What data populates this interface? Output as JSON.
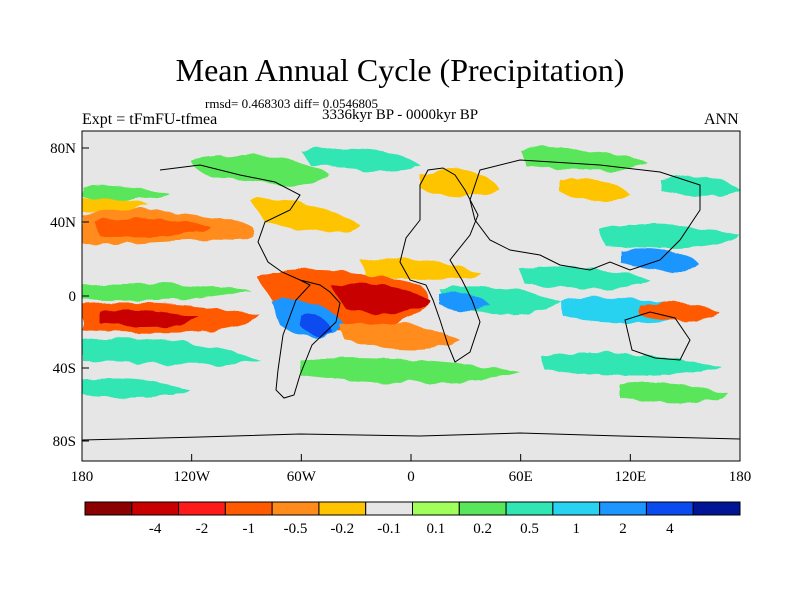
{
  "title": "Mean Annual Cycle (Precipitation)",
  "stats": "rmsd= 0.468303 diff= 0.0546805",
  "period": "3336kyr BP - 0000kyr BP",
  "experiment": "Expt = tFmFU-tfmea",
  "season": "ANN",
  "lat_axis": [
    "80N",
    "40N",
    "0",
    "40S",
    "80S"
  ],
  "lon_axis": [
    "180",
    "120W",
    "60W",
    "0",
    "60E",
    "120E",
    "180"
  ],
  "colorbar": {
    "colors": [
      "#8b0000",
      "#c80000",
      "#ff1a1a",
      "#ff5a00",
      "#ff8c1a",
      "#ffc400",
      "#e6e6e6",
      "#a0ff5a",
      "#5ae65a",
      "#32e6b4",
      "#28d2f0",
      "#1e96ff",
      "#0a4bf0",
      "#001496"
    ],
    "labels": [
      "-4",
      "-2",
      "-1",
      "-0.5",
      "-0.2",
      "-0.1",
      "0.1",
      "0.2",
      "0.5",
      "1",
      "2",
      "4"
    ]
  }
}
